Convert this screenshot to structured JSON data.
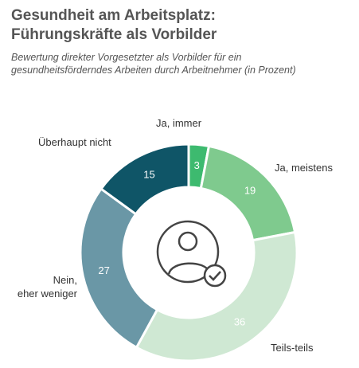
{
  "chart_data": {
    "type": "donut",
    "title": "Gesundheit am Arbeitsplatz:\nFührungskräfte als Vorbilder",
    "subtitle": "Bewertung direkter Vorgesetzter als Vorbilder für ein\ngesundheitsförderndes Arbeiten durch Arbeitnehmer (in Prozent)",
    "categories": [
      "Ja, immer",
      "Ja, meistens",
      "Teils-teils",
      "Nein,\neher weniger",
      "Überhaupt nicht"
    ],
    "values": [
      3,
      19,
      36,
      27,
      15
    ],
    "colors": [
      "#3dba6f",
      "#7fca8e",
      "#cfe8d3",
      "#6a97a6",
      "#0f5567"
    ]
  }
}
